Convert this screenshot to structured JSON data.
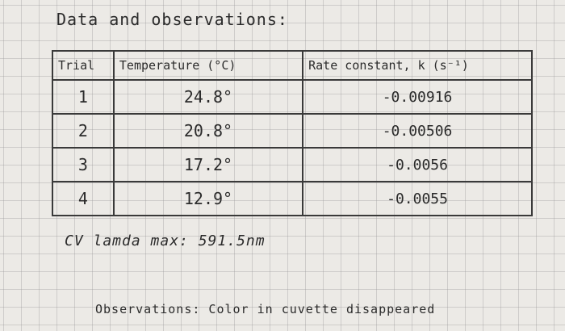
{
  "title": "Data and observations:",
  "table": {
    "header": [
      "Trial",
      "Temperature (°C)",
      "Rate constant, k (s⁻¹)"
    ],
    "rows": [
      [
        "1",
        "24.8°",
        "-0.00916"
      ],
      [
        "2",
        "20.8°",
        "-0.00506"
      ],
      [
        "3",
        "17.2°",
        "-0.0056"
      ],
      [
        "4",
        "12.9°",
        "-0.0055"
      ]
    ]
  },
  "lambda_max": "CV lamda max: 591.5nm",
  "observations": "Observations: Color in cuvette disappeared"
}
